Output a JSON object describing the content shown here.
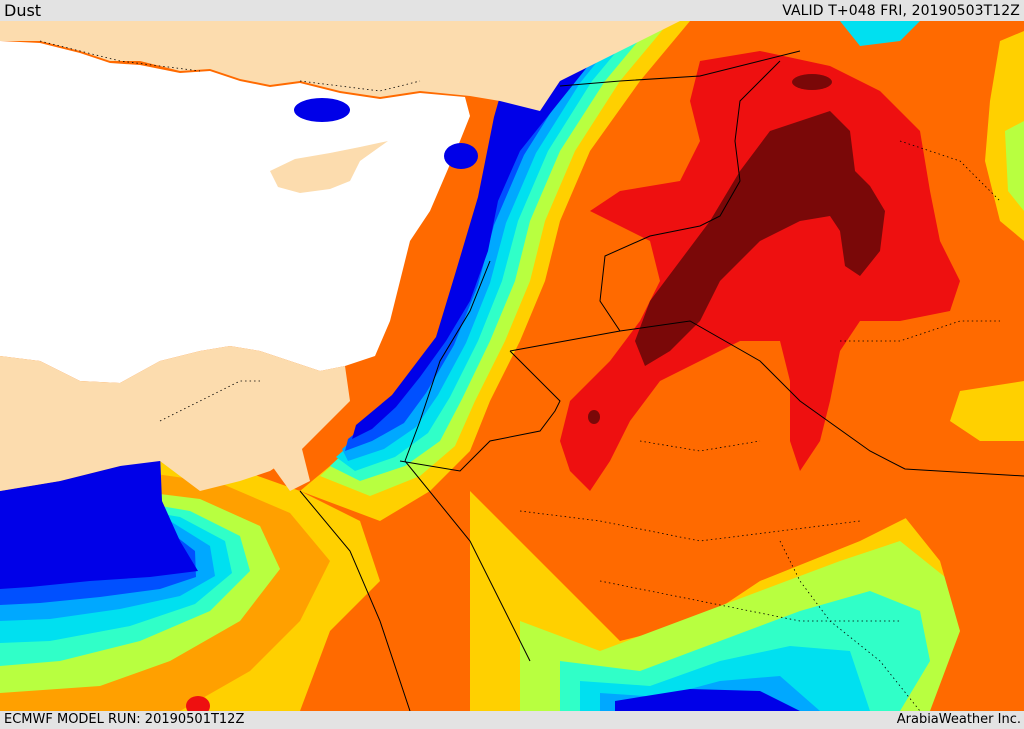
{
  "header": {
    "field_name": "Dust",
    "valid_time": "VALID T+048 FRI, 20190503T12Z"
  },
  "footer": {
    "model_run": "ECMWF MODEL RUN: 20190501T12Z",
    "credit": "ArabiaWeather Inc."
  },
  "map": {
    "field": "dust concentration",
    "legend_shown": false,
    "colors": {
      "land": "#fcdcae",
      "sea": "#ffffff",
      "dark_blue": "#0000e8",
      "blue": "#0050ff",
      "sky": "#00a8ff",
      "cyan": "#00e0f0",
      "aqua": "#30ffc8",
      "lime": "#b8ff40",
      "yellow": "#ffd000",
      "orange_light": "#ffa000",
      "orange": "#ff6a00",
      "red": "#ee1010",
      "dark_red": "#7a0808"
    }
  }
}
